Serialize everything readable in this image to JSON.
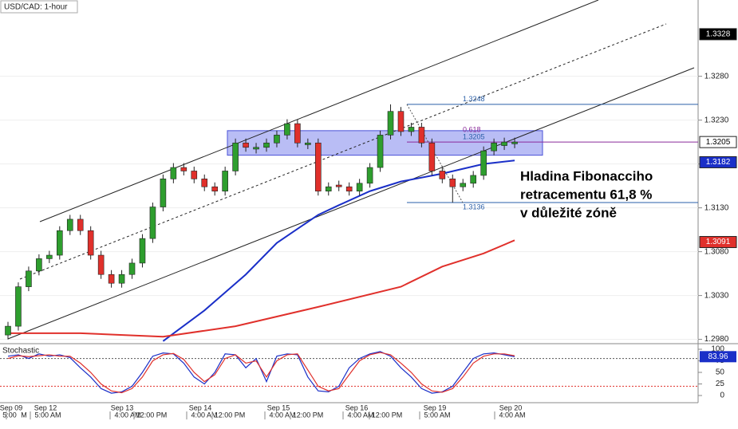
{
  "chart_data": {
    "type": "candlestick",
    "title": "USD/CAD: 1-hour",
    "up_color": "#2e9e2e",
    "down_color": "#e0302b",
    "ylim": [
      1.2976,
      1.3367
    ],
    "yticks": [
      {
        "value": 1.328,
        "label": "1.3280"
      },
      {
        "value": 1.323,
        "label": "1.3230"
      },
      {
        "value": 1.318,
        "label": "1.3180"
      },
      {
        "value": 1.313,
        "label": "1.3130"
      },
      {
        "value": 1.308,
        "label": "1.3080"
      },
      {
        "value": 1.303,
        "label": "1.3030"
      },
      {
        "value": 1.298,
        "label": "1.2980"
      }
    ],
    "price_markers": [
      {
        "value": 1.3328,
        "color": "#000000"
      },
      {
        "value": 1.3205,
        "color": "#ffffff"
      },
      {
        "value": 1.3182,
        "color": "#1a2fc8"
      },
      {
        "value": 1.3091,
        "color": "#e0302b"
      }
    ],
    "ohlc": [
      [
        1.2985,
        1.3,
        1.298,
        1.2995
      ],
      [
        1.2995,
        1.3045,
        1.299,
        1.304
      ],
      [
        1.304,
        1.3063,
        1.3035,
        1.3058
      ],
      [
        1.3058,
        1.3077,
        1.3053,
        1.3072
      ],
      [
        1.3072,
        1.3081,
        1.3067,
        1.3076
      ],
      [
        1.3076,
        1.3109,
        1.3071,
        1.3104
      ],
      [
        1.3104,
        1.3122,
        1.3099,
        1.3117
      ],
      [
        1.3117,
        1.3122,
        1.3099,
        1.3104
      ],
      [
        1.3104,
        1.3109,
        1.3071,
        1.3076
      ],
      [
        1.3076,
        1.3081,
        1.3049,
        1.3054
      ],
      [
        1.3054,
        1.3059,
        1.3039,
        1.3044
      ],
      [
        1.3044,
        1.3059,
        1.3039,
        1.3054
      ],
      [
        1.3054,
        1.3072,
        1.3049,
        1.3067
      ],
      [
        1.3067,
        1.31,
        1.3062,
        1.3095
      ],
      [
        1.3095,
        1.3136,
        1.309,
        1.3131
      ],
      [
        1.3131,
        1.3168,
        1.3126,
        1.3163
      ],
      [
        1.3163,
        1.3181,
        1.3158,
        1.3176
      ],
      [
        1.3176,
        1.3181,
        1.3167,
        1.3172
      ],
      [
        1.3172,
        1.3177,
        1.3158,
        1.3163
      ],
      [
        1.3163,
        1.3168,
        1.3149,
        1.3154
      ],
      [
        1.3154,
        1.3159,
        1.3144,
        1.3149
      ],
      [
        1.3149,
        1.3177,
        1.3144,
        1.3172
      ],
      [
        1.3172,
        1.3209,
        1.3167,
        1.3204
      ],
      [
        1.3204,
        1.3209,
        1.3194,
        1.3199
      ],
      [
        1.3197,
        1.3204,
        1.3192,
        1.3199
      ],
      [
        1.3199,
        1.3209,
        1.3194,
        1.3204
      ],
      [
        1.3204,
        1.3218,
        1.3199,
        1.3213
      ],
      [
        1.3213,
        1.3231,
        1.3208,
        1.3226
      ],
      [
        1.3226,
        1.3231,
        1.3199,
        1.3204
      ],
      [
        1.3202,
        1.3209,
        1.3197,
        1.3204
      ],
      [
        1.3204,
        1.3209,
        1.3144,
        1.3149
      ],
      [
        1.3149,
        1.3159,
        1.3144,
        1.3154
      ],
      [
        1.3156,
        1.3161,
        1.3149,
        1.3154
      ],
      [
        1.3154,
        1.3159,
        1.3144,
        1.3149
      ],
      [
        1.3149,
        1.3163,
        1.3144,
        1.3158
      ],
      [
        1.3158,
        1.3181,
        1.3153,
        1.3176
      ],
      [
        1.3176,
        1.3218,
        1.3171,
        1.3213
      ],
      [
        1.3213,
        1.3248,
        1.3208,
        1.324
      ],
      [
        1.324,
        1.3245,
        1.3212,
        1.3217
      ],
      [
        1.3217,
        1.3227,
        1.3212,
        1.3222
      ],
      [
        1.3222,
        1.3227,
        1.3199,
        1.3204
      ],
      [
        1.3204,
        1.3209,
        1.3167,
        1.3172
      ],
      [
        1.3172,
        1.3177,
        1.3158,
        1.3163
      ],
      [
        1.3163,
        1.3168,
        1.3136,
        1.3154
      ],
      [
        1.3154,
        1.3163,
        1.3149,
        1.3158
      ],
      [
        1.3158,
        1.3172,
        1.3153,
        1.3167
      ],
      [
        1.3167,
        1.32,
        1.3162,
        1.3195
      ],
      [
        1.3195,
        1.3209,
        1.319,
        1.3204
      ],
      [
        1.3201,
        1.321,
        1.3196,
        1.3205
      ],
      [
        1.3203,
        1.321,
        1.3198,
        1.3205
      ]
    ],
    "moving_averages": [
      {
        "color": "#1a2fc8",
        "x": [
          15,
          19,
          23,
          26,
          30,
          32,
          35,
          38,
          42,
          46,
          49
        ],
        "values": [
          1.2978,
          1.3013,
          1.3054,
          1.309,
          1.3122,
          1.3133,
          1.3149,
          1.316,
          1.3169,
          1.318,
          1.3184
        ]
      },
      {
        "color": "#e0302b",
        "x": [
          0,
          7,
          15,
          22,
          30,
          38,
          42,
          46,
          49
        ],
        "values": [
          1.2987,
          1.2987,
          1.2983,
          1.2995,
          1.3017,
          1.304,
          1.3063,
          1.3078,
          1.3093
        ]
      }
    ],
    "zone": [
      1.319,
      1.3218
    ],
    "fib_levels": [
      1.3248,
      1.3205,
      1.3136
    ],
    "fib_ratio": 0.618,
    "annotation": [
      "Hladina Fibonacciho",
      "retracementu 61,8 %",
      "v důležité zóně"
    ],
    "stochastic": {
      "label": "Stochastic",
      "ylim": [
        0,
        100
      ],
      "yticks": [
        100,
        75,
        50,
        25,
        0
      ],
      "levels": [
        80,
        20
      ],
      "last_label": 83.96,
      "series": [
        {
          "color": "#1a2fc8",
          "values": [
            85,
            88,
            80,
            90,
            85,
            88,
            82,
            60,
            40,
            15,
            5,
            8,
            20,
            50,
            85,
            92,
            90,
            70,
            40,
            25,
            50,
            90,
            88,
            60,
            80,
            30,
            85,
            90,
            88,
            40,
            10,
            8,
            20,
            60,
            80,
            90,
            95,
            85,
            60,
            40,
            15,
            5,
            8,
            20,
            50,
            80,
            90,
            92,
            88,
            83.96
          ]
        },
        {
          "color": "#e0302b",
          "values": [
            80,
            86,
            84,
            86,
            88,
            85,
            85,
            70,
            50,
            25,
            10,
            6,
            15,
            40,
            75,
            88,
            91,
            78,
            50,
            30,
            45,
            80,
            88,
            70,
            75,
            40,
            75,
            88,
            90,
            55,
            20,
            10,
            15,
            45,
            75,
            88,
            93,
            88,
            70,
            50,
            25,
            10,
            7,
            15,
            40,
            70,
            85,
            90,
            90,
            86
          ]
        }
      ]
    },
    "date_labels": [
      "Sep 09",
      "Sep 12",
      "Sep 13",
      "Sep 14",
      "Sep 15",
      "Sep 16",
      "Sep 19",
      "Sep 20"
    ],
    "time_labels": [
      "5:00",
      "M",
      "5:00 AM",
      "4:00 AM",
      "12:00 PM",
      "4:00 AM",
      "12:00 PM",
      "4:00 AM",
      "12:00 PM",
      "4:00 AM",
      "12:00 PM",
      "5:00 AM",
      "4:00 AM"
    ]
  }
}
